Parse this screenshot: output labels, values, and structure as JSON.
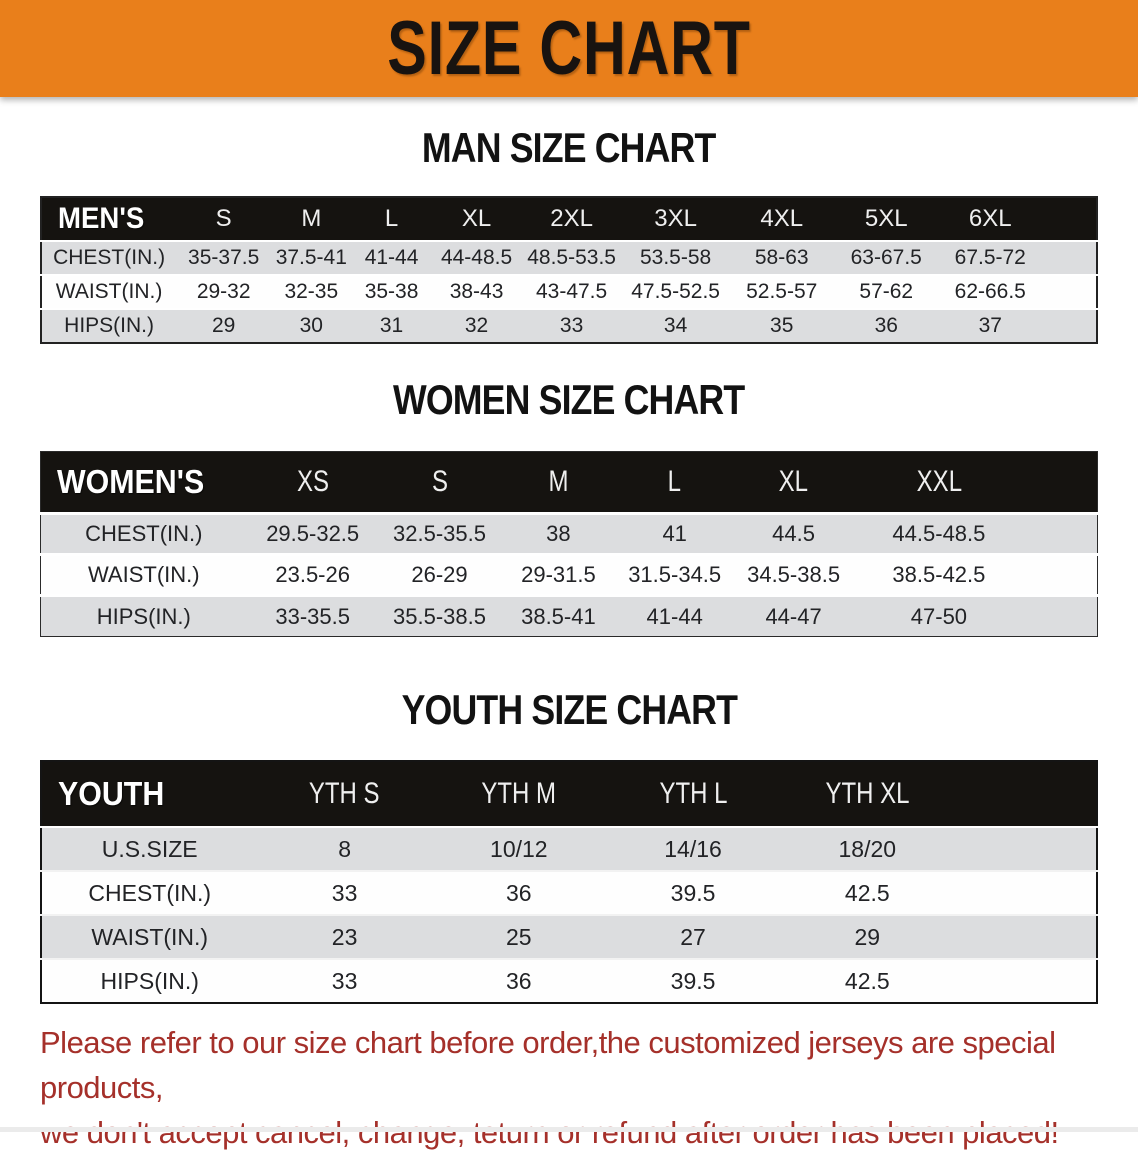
{
  "banner": {
    "title": "SIZE CHART",
    "bg_color": "#E97F1B"
  },
  "sections": [
    {
      "id": "men",
      "heading": "MAN SIZE CHART",
      "table": {
        "corner": "MEN'S",
        "sizes": [
          "S",
          "M",
          "L",
          "XL",
          "2XL",
          "3XL",
          "4XL",
          "5XL",
          "6XL"
        ],
        "rows": [
          {
            "label": "CHEST(IN.)",
            "values": [
              "35-37.5",
              "37.5-41",
              "41-44",
              "44-48.5",
              "48.5-53.5",
              "53.5-58",
              "58-63",
              "63-67.5",
              "67.5-72"
            ]
          },
          {
            "label": "WAIST(IN.)",
            "values": [
              "29-32",
              "32-35",
              "35-38",
              "38-43",
              "43-47.5",
              "47.5-52.5",
              "52.5-57",
              "57-62",
              "62-66.5"
            ]
          },
          {
            "label": "HIPS(IN.)",
            "values": [
              "29",
              "30",
              "31",
              "32",
              "33",
              "34",
              "35",
              "36",
              "37"
            ]
          }
        ]
      }
    },
    {
      "id": "women",
      "heading": "WOMEN SIZE CHART",
      "table": {
        "corner": "WOMEN'S",
        "sizes": [
          "XS",
          "S",
          "M",
          "L",
          "XL",
          "XXL"
        ],
        "rows": [
          {
            "label": "CHEST(IN.)",
            "values": [
              "29.5-32.5",
              "32.5-35.5",
              "38",
              "41",
              "44.5",
              "44.5-48.5"
            ]
          },
          {
            "label": "WAIST(IN.)",
            "values": [
              "23.5-26",
              "26-29",
              "29-31.5",
              "31.5-34.5",
              "34.5-38.5",
              "38.5-42.5"
            ]
          },
          {
            "label": "HIPS(IN.)",
            "values": [
              "33-35.5",
              "35.5-38.5",
              "38.5-41",
              "41-44",
              "44-47",
              "47-50"
            ]
          }
        ]
      }
    },
    {
      "id": "youth",
      "heading": "YOUTH SIZE CHART",
      "table": {
        "corner": "YOUTH",
        "sizes": [
          "YTH S",
          "YTH M",
          "YTH L",
          "YTH XL"
        ],
        "rows": [
          {
            "label": "U.S.SIZE",
            "values": [
              "8",
              "10/12",
              "14/16",
              "18/20"
            ]
          },
          {
            "label": "CHEST(IN.)",
            "values": [
              "33",
              "36",
              "39.5",
              "42.5"
            ]
          },
          {
            "label": "WAIST(IN.)",
            "values": [
              "23",
              "25",
              "27",
              "29"
            ]
          },
          {
            "label": "HIPS(IN.)",
            "values": [
              "33",
              "36",
              "39.5",
              "42.5"
            ]
          }
        ]
      }
    }
  ],
  "disclaimer": {
    "color": "#A5302A",
    "lines": [
      "Please refer to our size chart before order,the customized jerseys are special products,",
      "we don't accept cancel, change, teturn or refund after order has been placed!"
    ]
  }
}
